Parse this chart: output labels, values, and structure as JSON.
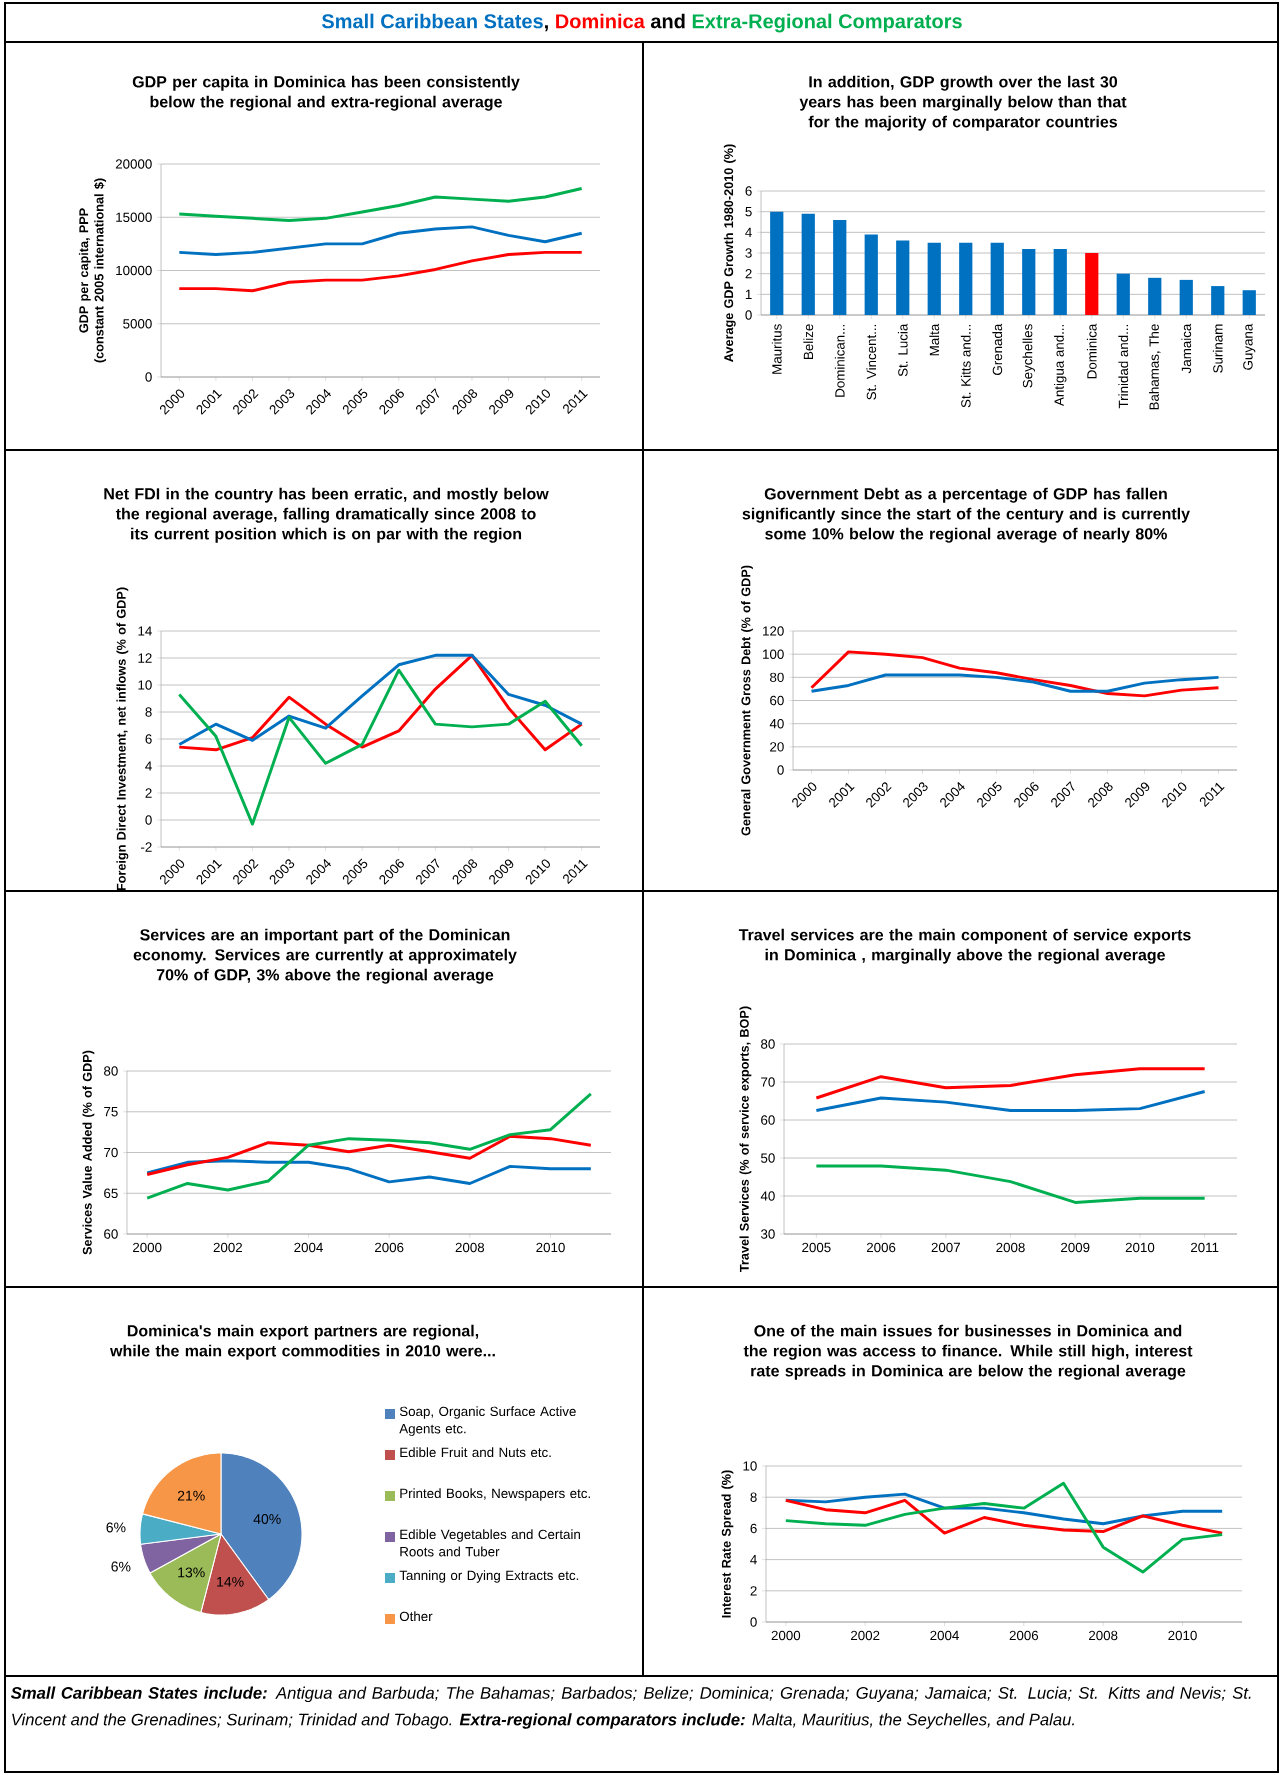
{
  "chart_data": [
    {
      "type": "other",
      "categories": [
        "Small Caribbean States",
        "Dominica",
        "Extra-Regional Comparators"
      ],
      "colors": [
        "#0070c0",
        "#ff0000",
        "#00b050"
      ],
      "annotations": [
        ",",
        "and"
      ]
    },
    {
      "type": "line",
      "title": "GDP per capita in Dominica has been consistently below the regional and extra-regional average",
      "ylabel": "GDP per capita, PPP (constant 2005 international $)",
      "categories": [
        "2000",
        "2001",
        "2002",
        "2003",
        "2004",
        "2005",
        "2006",
        "2007",
        "2008",
        "2009",
        "2010",
        "2011"
      ],
      "ylim": [
        0,
        20000
      ],
      "yticks": [
        0,
        5000,
        10000,
        15000,
        20000
      ],
      "grid": "y",
      "series": [
        {
          "color": "#00b050",
          "values": [
            15300,
            15100,
            14900,
            14700,
            14900,
            15500,
            16100,
            16900,
            16700,
            16500,
            16900,
            17700
          ]
        },
        {
          "color": "#0070c0",
          "values": [
            11700,
            11500,
            11700,
            12100,
            12500,
            12500,
            13500,
            13900,
            14100,
            13300,
            12700,
            13500
          ]
        },
        {
          "color": "#ff0000",
          "values": [
            8300,
            8300,
            8100,
            8900,
            9100,
            9100,
            9500,
            10100,
            10900,
            11500,
            11700,
            11700
          ]
        }
      ]
    },
    {
      "type": "bar",
      "title": "In addition, GDP growth over the last 30 years has been marginally below than that for the majority of comparator countries",
      "ylabel": "Average GDP Growth 1980-2010 (%)",
      "categories": [
        "Mauritus",
        "Belize",
        "Dominican...",
        "St. Vincent...",
        "St. Lucia",
        "Malta",
        "St. Kitts and...",
        "Grenada",
        "Seychelles",
        "Antigua and...",
        "Dominica",
        "Trinidad and...",
        "Bahamas, The",
        "Jamaica",
        "Surinam",
        "Guyana"
      ],
      "values": [
        5.0,
        4.9,
        4.6,
        3.9,
        3.6,
        3.5,
        3.5,
        3.5,
        3.2,
        3.2,
        3.0,
        2.0,
        1.8,
        1.7,
        1.4,
        1.2
      ],
      "colors": [
        "#0070c0",
        "#0070c0",
        "#0070c0",
        "#0070c0",
        "#0070c0",
        "#0070c0",
        "#0070c0",
        "#0070c0",
        "#0070c0",
        "#0070c0",
        "#ff0000",
        "#0070c0",
        "#0070c0",
        "#0070c0",
        "#0070c0",
        "#0070c0"
      ],
      "ylim": [
        0,
        6
      ],
      "yticks": [
        0,
        1,
        2,
        3,
        4,
        5,
        6
      ],
      "grid": "y"
    },
    {
      "type": "line",
      "title": "Net FDI in the country has been erratic, and mostly below the regional average, falling dramatically since 2008 to its current position which is on par with the region",
      "ylabel": "Foreign Direct Investment, net inflows (% of GDP)",
      "categories": [
        "2000",
        "2001",
        "2002",
        "2003",
        "2004",
        "2005",
        "2006",
        "2007",
        "2008",
        "2009",
        "2010",
        "2011"
      ],
      "ylim": [
        -2,
        14
      ],
      "yticks": [
        -2,
        0,
        2,
        4,
        6,
        8,
        10,
        12,
        14
      ],
      "grid": "y",
      "series": [
        {
          "color": "#ff0000",
          "values": [
            5.4,
            5.2,
            6.1,
            9.1,
            7.1,
            5.4,
            6.6,
            9.7,
            12.2,
            8.3,
            5.2,
            7.1
          ]
        },
        {
          "color": "#0070c0",
          "values": [
            5.6,
            7.1,
            5.9,
            7.7,
            6.8,
            9.2,
            11.5,
            12.2,
            12.2,
            9.3,
            8.5,
            7.1
          ]
        },
        {
          "color": "#00b050",
          "values": [
            9.3,
            6.2,
            -0.3,
            7.6,
            4.2,
            5.6,
            11.1,
            7.1,
            6.9,
            7.1,
            8.8,
            5.5
          ]
        }
      ]
    },
    {
      "type": "line",
      "title": "Government Debt as a percentage of GDP has fallen significantly since the start of the century and is currently some 10% below the regional average of nearly 80%",
      "ylabel": "General Government Gross Debt (% of GDP)",
      "categories": [
        "2000",
        "2001",
        "2002",
        "2003",
        "2004",
        "2005",
        "2006",
        "2007",
        "2008",
        "2009",
        "2010",
        "2011"
      ],
      "ylim": [
        0,
        120
      ],
      "yticks": [
        0,
        20,
        40,
        60,
        80,
        100,
        120
      ],
      "grid": "y",
      "series": [
        {
          "color": "#ff0000",
          "values": [
            71,
            102,
            100,
            97,
            88,
            84,
            78,
            73,
            66,
            64,
            69,
            71
          ]
        },
        {
          "color": "#0070c0",
          "values": [
            68,
            73,
            82,
            82,
            82,
            80,
            76,
            68,
            68,
            75,
            78,
            80
          ]
        }
      ]
    },
    {
      "type": "line",
      "title": "Services are an important part of the Dominican economy.  Services are currently at approximately 70% of GDP, 3% above the regional average",
      "ylabel": "Services Value Added (% of GDP)",
      "x": [
        2000,
        2001,
        2002,
        2003,
        2004,
        2005,
        2006,
        2007,
        2008,
        2009,
        2010,
        2011
      ],
      "xlim": [
        1999.5,
        2011.5
      ],
      "xticks": [
        2000,
        2002,
        2004,
        2006,
        2008,
        2010
      ],
      "ylim": [
        60,
        80
      ],
      "yticks": [
        60,
        65,
        70,
        75,
        80
      ],
      "grid": "y",
      "series": [
        {
          "color": "#0070c0",
          "values": [
            67.5,
            68.8,
            69.0,
            68.8,
            68.8,
            68.0,
            66.4,
            67.0,
            66.2,
            68.3,
            68.0,
            68.0
          ]
        },
        {
          "color": "#ff0000",
          "values": [
            67.3,
            68.5,
            69.4,
            71.2,
            70.9,
            70.1,
            70.9,
            70.1,
            69.3,
            72.0,
            71.7,
            70.9
          ]
        },
        {
          "color": "#00b050",
          "values": [
            64.4,
            66.2,
            65.4,
            66.5,
            70.9,
            71.7,
            71.5,
            71.2,
            70.4,
            72.2,
            72.8,
            77.2
          ]
        }
      ]
    },
    {
      "type": "line",
      "title": "Travel services are the main component of service exports in Dominica , marginally above the regional average",
      "ylabel": "Travel Services (% of service exports, BOP)",
      "categories": [
        "2005",
        "2006",
        "2007",
        "2008",
        "2009",
        "2010",
        "2011"
      ],
      "ylim": [
        30,
        80
      ],
      "yticks": [
        30,
        40,
        50,
        60,
        70,
        80
      ],
      "grid": "y",
      "series": [
        {
          "color": "#ff0000",
          "values": [
            65.8,
            71.4,
            68.5,
            69.1,
            71.9,
            73.5,
            73.5
          ]
        },
        {
          "color": "#0070c0",
          "values": [
            62.5,
            65.8,
            64.7,
            62.5,
            62.5,
            63.0,
            67.5
          ]
        },
        {
          "color": "#00b050",
          "values": [
            47.9,
            47.9,
            46.8,
            43.8,
            38.3,
            39.4,
            39.4
          ]
        }
      ]
    },
    {
      "type": "pie",
      "title": "Dominica's main export partners are regional, while the main export commodities  in 2010 were...",
      "categories": [
        "Soap, Organic Surface Active Agents etc.",
        "Edible Fruit and Nuts etc.",
        "Printed Books, Newspapers etc.",
        "Edible Vegetables and Certain Roots and Tuber",
        "Tanning or Dying Extracts etc.",
        "Other"
      ],
      "values": [
        40,
        14,
        13,
        6,
        6,
        21
      ],
      "value_labels": [
        "40%",
        "14%",
        "13%",
        "6%",
        "6%",
        "21%"
      ],
      "colors": [
        "#4f81bd",
        "#c0504d",
        "#9bbb59",
        "#8064a2",
        "#4bacc6",
        "#f79646"
      ],
      "legend": "right"
    },
    {
      "type": "line",
      "title": "One of the main issues for businesses in Dominica and the region was access to finance.  While still high, interest rate spreads in Dominica are below the regional average",
      "ylabel": "Interest Rate Spread (%)",
      "x": [
        2000,
        2001,
        2002,
        2003,
        2004,
        2005,
        2006,
        2007,
        2008,
        2009,
        2010,
        2011
      ],
      "xlim": [
        1999.5,
        2011.5
      ],
      "xticks": [
        2000,
        2002,
        2004,
        2006,
        2008,
        2010
      ],
      "ylim": [
        0,
        10
      ],
      "yticks": [
        0,
        2,
        4,
        6,
        8,
        10
      ],
      "grid": "y",
      "series": [
        {
          "color": "#0070c0",
          "values": [
            7.8,
            7.7,
            8.0,
            8.2,
            7.3,
            7.3,
            7.0,
            6.6,
            6.3,
            6.8,
            7.1,
            7.1
          ]
        },
        {
          "color": "#ff0000",
          "values": [
            7.8,
            7.2,
            7.0,
            7.8,
            5.7,
            6.7,
            6.2,
            5.9,
            5.8,
            6.8,
            6.2,
            5.7
          ]
        },
        {
          "color": "#00b050",
          "values": [
            6.5,
            6.3,
            6.2,
            6.9,
            7.3,
            7.6,
            7.3,
            8.9,
            4.8,
            3.2,
            5.3,
            5.6
          ]
        }
      ]
    },
    {
      "type": "other",
      "annotations": [
        "**Small Caribbean States include:** Antigua and Barbuda; The Bahamas; Barbados; Belize; Dominica; Grenada; Guyana; Jamaica; St. Lucia; St. Kitts and Nevis; St. Vincent and the Grenadines; Surinam; Trinidad and Tobago.  **Extra-regional comparators include:** Malta, Mauritius, the Seychelles, and Palau."
      ]
    }
  ]
}
